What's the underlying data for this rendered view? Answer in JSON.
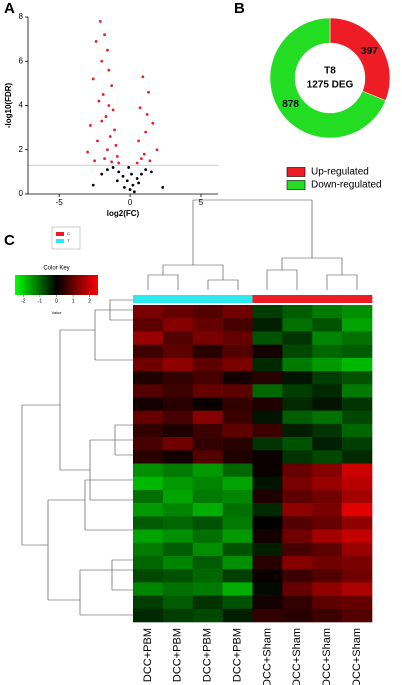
{
  "chart_data": [
    {
      "type": "scatter",
      "label": "A",
      "xlabel": "log2(FC)",
      "ylabel": "-log10(FDR)",
      "xlim": [
        -7.2,
        6.2
      ],
      "ylim": [
        0,
        8
      ],
      "xticks": [
        -5,
        0,
        5
      ],
      "yticks": [
        0,
        2,
        4,
        6,
        8
      ],
      "hline": 1.3,
      "hline_color": "#bbbbbb",
      "series": [
        {
          "color": "#ee1c25",
          "x": [
            -2.1,
            -1.8,
            -2.4,
            -1.6,
            -2.0,
            -1.5,
            -2.6,
            -1.3,
            -1.9,
            -2.2,
            -1.2,
            -1.7,
            -2.8,
            -1.1,
            -1.4,
            -2.3,
            -1.0,
            -1.6,
            -3.0,
            -0.9,
            -1.8,
            -2.5,
            -1.3,
            -0.8,
            -2.0,
            -1.5,
            0.9,
            1.3,
            0.7,
            1.6,
            1.1,
            0.6,
            1.9,
            1.0,
            0.8,
            1.4,
            1.2,
            0.5
          ],
          "values": [
            7.8,
            7.2,
            6.9,
            6.5,
            6.0,
            5.6,
            5.2,
            4.9,
            4.5,
            4.2,
            3.8,
            3.5,
            3.1,
            2.9,
            2.6,
            2.4,
            2.2,
            2.0,
            1.9,
            1.7,
            1.6,
            1.5,
            1.45,
            1.4,
            3.3,
            4.0,
            5.3,
            4.6,
            3.9,
            3.2,
            2.8,
            2.4,
            2.0,
            1.8,
            1.6,
            1.5,
            3.6,
            1.4
          ]
        },
        {
          "color": "#000000",
          "x": [
            -1.2,
            -0.8,
            -0.5,
            -0.2,
            0,
            0.2,
            0.5,
            0.8,
            1.1,
            1.5,
            -1.6,
            -2.0,
            0.3,
            -0.4,
            0.6,
            -0.9,
            2.3,
            -2.6,
            0.1,
            -0.1
          ],
          "values": [
            1.2,
            1.0,
            0.8,
            0.6,
            0.2,
            0.4,
            0.7,
            0.9,
            1.1,
            1.0,
            1.1,
            0.9,
            0.1,
            0.3,
            0.5,
            0.6,
            0.3,
            0.4,
            0.9,
            1.2
          ]
        }
      ]
    },
    {
      "type": "pie",
      "label": "B",
      "center_text": [
        "T8",
        "1275 DEG"
      ],
      "categories": [
        "Up-regulated",
        "Down-regulated"
      ],
      "values": [
        397,
        878
      ],
      "colors": [
        "#ee1c25",
        "#22dd22"
      ]
    },
    {
      "type": "heatmap",
      "label": "C",
      "groups": {
        "names": [
          "C",
          "T"
        ],
        "colors": [
          "#ee1c25",
          "#2ee8f0"
        ]
      },
      "column_group": [
        "T",
        "T",
        "T",
        "T",
        "C",
        "C",
        "C",
        "C"
      ],
      "color_key": {
        "title": "Color Key",
        "label": "Value",
        "zlim": [
          -2.5,
          2.5
        ],
        "ticks": [
          -2,
          -1,
          0,
          1,
          2
        ],
        "colors": [
          "#00ff00",
          "#000000",
          "#ff0000"
        ]
      },
      "columns": [
        "DCC+PBM",
        "DCC+PBM",
        "DCC+PBM",
        "DCC+PBM",
        "DCC+Sham",
        "DCC+Sham",
        "DCC+Sham",
        "DCC+Sham"
      ],
      "matrix": [
        [
          1.2,
          1.0,
          0.8,
          1.1,
          -0.6,
          -0.9,
          -1.2,
          -1.4
        ],
        [
          0.9,
          1.3,
          1.0,
          0.7,
          -0.3,
          -1.1,
          -0.8,
          -1.6
        ],
        [
          1.5,
          0.8,
          1.2,
          1.0,
          -0.8,
          -0.5,
          -1.3,
          -1.1
        ],
        [
          0.6,
          0.9,
          0.4,
          0.8,
          0.2,
          -0.7,
          -1.0,
          -0.9
        ],
        [
          1.1,
          1.4,
          0.9,
          1.2,
          -0.4,
          -1.2,
          -1.5,
          -1.8
        ],
        [
          0.3,
          0.5,
          0.7,
          0.2,
          0.4,
          -0.2,
          -0.6,
          -0.8
        ],
        [
          0.8,
          0.6,
          1.0,
          0.9,
          -1.0,
          -0.6,
          -0.4,
          -1.2
        ],
        [
          0.2,
          0.4,
          0.1,
          0.5,
          0.3,
          -0.4,
          -0.2,
          -0.5
        ],
        [
          1.0,
          0.7,
          1.3,
          0.6,
          -0.2,
          -0.9,
          -1.1,
          -0.7
        ],
        [
          0.5,
          0.3,
          0.6,
          0.9,
          0.6,
          -0.3,
          -0.5,
          -1.0
        ],
        [
          0.7,
          1.1,
          0.5,
          0.4,
          -0.5,
          -0.8,
          -0.3,
          -0.6
        ],
        [
          0.4,
          0.2,
          0.8,
          0.3,
          0.1,
          -0.5,
          -0.7,
          -0.4
        ],
        [
          -1.4,
          -1.2,
          -1.5,
          -1.0,
          0.1,
          1.0,
          1.3,
          2.0
        ],
        [
          -1.8,
          -1.5,
          -1.3,
          -1.6,
          -0.2,
          1.2,
          1.5,
          1.8
        ],
        [
          -1.1,
          -1.6,
          -1.2,
          -1.3,
          0.3,
          0.9,
          1.1,
          1.6
        ],
        [
          -1.5,
          -1.3,
          -1.7,
          -1.1,
          -0.4,
          1.4,
          1.2,
          2.2
        ],
        [
          -0.9,
          -1.0,
          -0.8,
          -1.2,
          0.0,
          0.8,
          1.0,
          1.4
        ],
        [
          -1.6,
          -1.4,
          -1.1,
          -1.5,
          0.2,
          1.1,
          1.6,
          1.9
        ],
        [
          -1.2,
          -0.9,
          -1.4,
          -0.8,
          -0.3,
          0.7,
          0.9,
          1.5
        ],
        [
          -1.0,
          -1.3,
          -0.9,
          -1.4,
          0.4,
          1.3,
          1.1,
          1.2
        ],
        [
          -0.7,
          -0.8,
          -1.0,
          -0.6,
          0.1,
          0.6,
          0.8,
          1.1
        ],
        [
          -1.3,
          -1.1,
          -1.2,
          -1.7,
          -0.1,
          1.0,
          1.4,
          1.7
        ],
        [
          -0.6,
          -0.9,
          -0.5,
          -0.8,
          0.2,
          0.5,
          0.9,
          1.0
        ],
        [
          -0.4,
          -0.6,
          -0.7,
          -0.3,
          0.5,
          0.4,
          0.6,
          0.8
        ]
      ]
    }
  ]
}
